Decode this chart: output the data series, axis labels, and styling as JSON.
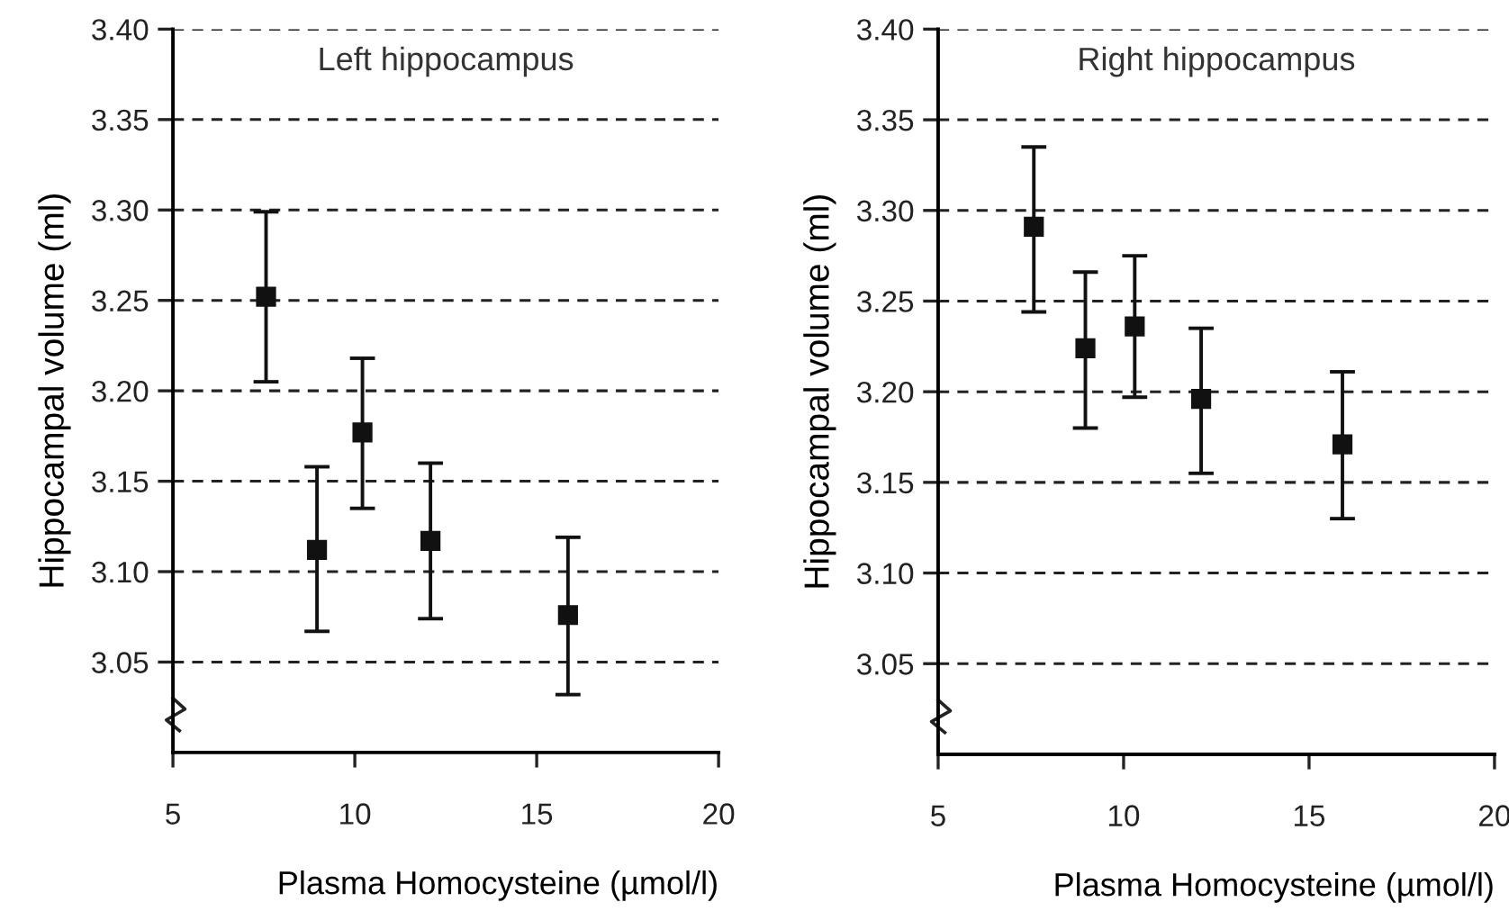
{
  "chart_data": [
    {
      "type": "scatter",
      "title": "Left hippocampus",
      "xlabel": "Plasma Homocysteine (µmol/l)",
      "ylabel": "Hippocampal volume (ml)",
      "xlim": [
        5,
        20
      ],
      "xticks": [
        5,
        10,
        15,
        20
      ],
      "ylim": [
        3.0,
        3.4
      ],
      "yticks": [
        {
          "value": 3.05,
          "label": "3.05"
        },
        {
          "value": 3.1,
          "label": "3.10"
        },
        {
          "value": 3.15,
          "label": "3.15"
        },
        {
          "value": 3.2,
          "label": "3.20"
        },
        {
          "value": 3.25,
          "label": "3.25"
        },
        {
          "value": 3.3,
          "label": "3.30"
        },
        {
          "value": 3.35,
          "label": "3.35"
        },
        {
          "value": 3.4,
          "label": "3.40"
        }
      ],
      "grid": "y",
      "marker": "square",
      "series": [
        {
          "color": "#111111",
          "x": [
            7.56,
            8.96,
            10.21,
            12.08,
            15.86
          ],
          "values": [
            3.252,
            3.112,
            3.177,
            3.117,
            3.076
          ],
          "errors": [
            [
              3.205,
              3.299
            ],
            [
              3.067,
              3.158
            ],
            [
              3.135,
              3.218
            ],
            [
              3.074,
              3.16
            ],
            [
              3.032,
              3.119
            ]
          ]
        }
      ]
    },
    {
      "type": "scatter",
      "title": "Right hippocampus",
      "xlabel": "Plasma Homocysteine (µmol/l)",
      "ylabel": "Hippocampal volume (ml)",
      "xlim": [
        5,
        20
      ],
      "xticks": [
        5,
        10,
        15,
        20
      ],
      "ylim": [
        3.0,
        3.4
      ],
      "yticks": [
        {
          "value": 3.05,
          "label": "3.05"
        },
        {
          "value": 3.1,
          "label": "3.10"
        },
        {
          "value": 3.15,
          "label": "3.15"
        },
        {
          "value": 3.2,
          "label": "3.20"
        },
        {
          "value": 3.25,
          "label": "3.25"
        },
        {
          "value": 3.3,
          "label": "3.30"
        },
        {
          "value": 3.35,
          "label": "3.35"
        },
        {
          "value": 3.4,
          "label": "3.40"
        }
      ],
      "grid": "y",
      "marker": "square",
      "series": [
        {
          "color": "#111111",
          "x": [
            7.58,
            8.97,
            10.3,
            12.09,
            15.9
          ],
          "values": [
            3.291,
            3.224,
            3.236,
            3.196,
            3.171
          ],
          "errors": [
            [
              3.244,
              3.335
            ],
            [
              3.18,
              3.266
            ],
            [
              3.197,
              3.275
            ],
            [
              3.155,
              3.235
            ],
            [
              3.13,
              3.211
            ]
          ]
        }
      ]
    }
  ]
}
